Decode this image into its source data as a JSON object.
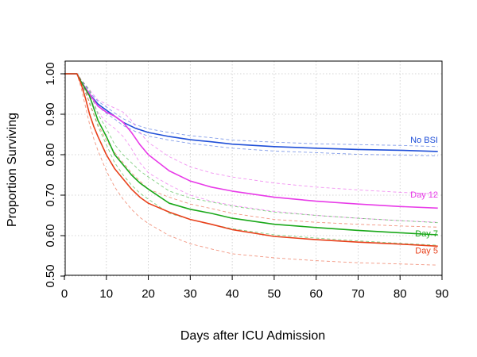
{
  "chart_data": {
    "type": "line",
    "title": "",
    "xlabel": "Days after ICU Admission",
    "ylabel": "Proportion Surviving",
    "xlim": [
      0,
      90
    ],
    "ylim": [
      0.48,
      1.0
    ],
    "x_ticks": [
      "0",
      "10",
      "20",
      "30",
      "40",
      "50",
      "60",
      "70",
      "80",
      "90"
    ],
    "y_ticks": [
      "0.50",
      "0.60",
      "0.70",
      "0.80",
      "0.90",
      "1.00"
    ],
    "grid": true,
    "confidence_bands": true,
    "series": [
      {
        "name": "No BSI",
        "color": "#1f4fd8",
        "x": [
          0,
          3,
          4,
          6,
          8,
          10,
          12,
          14,
          17,
          20,
          25,
          30,
          35,
          40,
          50,
          60,
          70,
          80,
          89
        ],
        "y": [
          1.0,
          1.0,
          0.98,
          0.95,
          0.925,
          0.91,
          0.895,
          0.88,
          0.865,
          0.855,
          0.845,
          0.837,
          0.832,
          0.826,
          0.82,
          0.816,
          0.813,
          0.811,
          0.808
        ],
        "lower": [
          1.0,
          1.0,
          0.975,
          0.945,
          0.92,
          0.902,
          0.888,
          0.872,
          0.857,
          0.846,
          0.836,
          0.828,
          0.822,
          0.816,
          0.809,
          0.805,
          0.801,
          0.799,
          0.797
        ],
        "upper": [
          1.0,
          1.0,
          0.985,
          0.955,
          0.932,
          0.918,
          0.903,
          0.889,
          0.874,
          0.864,
          0.855,
          0.847,
          0.842,
          0.836,
          0.831,
          0.827,
          0.825,
          0.823,
          0.82
        ]
      },
      {
        "name": "Day 12",
        "color": "#e83be8",
        "x": [
          0,
          3,
          4,
          6,
          8,
          10,
          12,
          14,
          16,
          18,
          20,
          25,
          30,
          35,
          40,
          50,
          60,
          70,
          80,
          89
        ],
        "y": [
          1.0,
          1.0,
          0.98,
          0.95,
          0.92,
          0.905,
          0.895,
          0.88,
          0.855,
          0.825,
          0.8,
          0.76,
          0.735,
          0.72,
          0.71,
          0.695,
          0.685,
          0.678,
          0.672,
          0.668
        ],
        "lower": [
          1.0,
          1.0,
          0.975,
          0.94,
          0.905,
          0.88,
          0.865,
          0.845,
          0.815,
          0.78,
          0.755,
          0.725,
          0.7,
          0.685,
          0.675,
          0.66,
          0.65,
          0.643,
          0.637,
          0.633
        ],
        "upper": [
          1.0,
          1.0,
          0.985,
          0.96,
          0.935,
          0.925,
          0.915,
          0.905,
          0.885,
          0.855,
          0.83,
          0.795,
          0.77,
          0.755,
          0.745,
          0.73,
          0.72,
          0.713,
          0.707,
          0.703
        ]
      },
      {
        "name": "Day 7",
        "color": "#1aa81a",
        "x": [
          0,
          3,
          4,
          6,
          7,
          8,
          10,
          12,
          14,
          16,
          18,
          20,
          25,
          30,
          35,
          40,
          50,
          60,
          70,
          80,
          89
        ],
        "y": [
          1.0,
          1.0,
          0.98,
          0.945,
          0.915,
          0.885,
          0.845,
          0.8,
          0.775,
          0.75,
          0.73,
          0.715,
          0.68,
          0.665,
          0.655,
          0.643,
          0.628,
          0.62,
          0.613,
          0.607,
          0.602
        ],
        "lower": [
          1.0,
          1.0,
          0.975,
          0.93,
          0.9,
          0.87,
          0.825,
          0.78,
          0.75,
          0.725,
          0.705,
          0.69,
          0.655,
          0.64,
          0.628,
          0.617,
          0.602,
          0.594,
          0.587,
          0.581,
          0.576
        ],
        "upper": [
          1.0,
          1.0,
          0.985,
          0.96,
          0.93,
          0.9,
          0.865,
          0.825,
          0.8,
          0.78,
          0.76,
          0.745,
          0.71,
          0.693,
          0.683,
          0.673,
          0.658,
          0.65,
          0.643,
          0.637,
          0.632
        ]
      },
      {
        "name": "Day 5",
        "color": "#e8401a",
        "x": [
          0,
          3,
          4,
          5,
          6,
          7,
          8,
          10,
          12,
          14,
          16,
          18,
          20,
          25,
          30,
          35,
          40,
          50,
          60,
          70,
          80,
          89
        ],
        "y": [
          1.0,
          1.0,
          0.975,
          0.94,
          0.9,
          0.87,
          0.845,
          0.8,
          0.765,
          0.74,
          0.715,
          0.695,
          0.68,
          0.658,
          0.64,
          0.628,
          0.615,
          0.598,
          0.59,
          0.584,
          0.579,
          0.574
        ],
        "lower": [
          1.0,
          1.0,
          0.965,
          0.92,
          0.875,
          0.84,
          0.81,
          0.76,
          0.72,
          0.69,
          0.665,
          0.645,
          0.63,
          0.6,
          0.58,
          0.567,
          0.555,
          0.545,
          0.538,
          0.533,
          0.53,
          0.527
        ],
        "upper": [
          1.0,
          1.0,
          0.985,
          0.96,
          0.925,
          0.9,
          0.875,
          0.835,
          0.805,
          0.78,
          0.755,
          0.735,
          0.715,
          0.695,
          0.678,
          0.667,
          0.655,
          0.64,
          0.633,
          0.628,
          0.624,
          0.621
        ]
      }
    ]
  }
}
